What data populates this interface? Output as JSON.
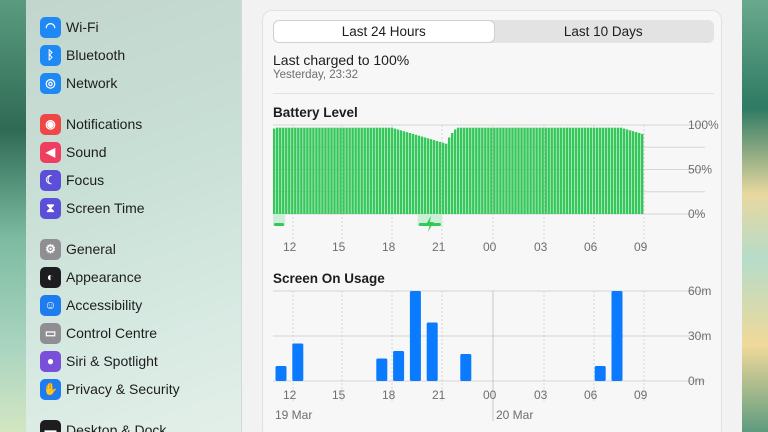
{
  "sidebar": {
    "items": [
      {
        "label": "Wi-Fi",
        "icon": "wifi-icon",
        "color": "#1e88f5",
        "glyph": "◠"
      },
      {
        "label": "Bluetooth",
        "icon": "bluetooth-icon",
        "color": "#1e88f5",
        "glyph": "ᛒ"
      },
      {
        "label": "Network",
        "icon": "globe-icon",
        "color": "#1e88f5",
        "glyph": "◎"
      },
      {
        "label": "Notifications",
        "icon": "bell-icon",
        "color": "#ef4747",
        "glyph": "◉"
      },
      {
        "label": "Sound",
        "icon": "speaker-icon",
        "color": "#ef3e5f",
        "glyph": "◀"
      },
      {
        "label": "Focus",
        "icon": "moon-icon",
        "color": "#5b4fd9",
        "glyph": "☾"
      },
      {
        "label": "Screen Time",
        "icon": "hourglass-icon",
        "color": "#5b4fd9",
        "glyph": "⧗"
      },
      {
        "label": "General",
        "icon": "gear-icon",
        "color": "#8e8e93",
        "glyph": "⚙"
      },
      {
        "label": "Appearance",
        "icon": "appearance-icon",
        "color": "#1d1d1f",
        "glyph": "◐"
      },
      {
        "label": "Accessibility",
        "icon": "accessibility-icon",
        "color": "#1e7cf0",
        "glyph": "☺"
      },
      {
        "label": "Control Centre",
        "icon": "toggles-icon",
        "color": "#8e8e93",
        "glyph": "▭"
      },
      {
        "label": "Siri & Spotlight",
        "icon": "siri-icon",
        "color": "#7a4fd9",
        "glyph": "●"
      },
      {
        "label": "Privacy & Security",
        "icon": "hand-icon",
        "color": "#1e7cf0",
        "glyph": "✋"
      },
      {
        "label": "Desktop & Dock",
        "icon": "dock-icon",
        "color": "#1d1d1f",
        "glyph": "▬"
      }
    ]
  },
  "tabs": [
    {
      "label": "Last 24 Hours",
      "active": true
    },
    {
      "label": "Last 10 Days",
      "active": false
    }
  ],
  "charge": {
    "label": "Last charged to 100%",
    "time": "Yesterday, 23:32"
  },
  "battery_title": "Battery Level",
  "usage_title": "Screen On Usage",
  "colors": {
    "battery": "#34c759",
    "usage": "#0a7aff",
    "grid": "#d6d6d6"
  },
  "chart_data": [
    {
      "type": "bar",
      "title": "Battery Level",
      "x_tick_labels": [
        "12",
        "15",
        "18",
        "21",
        "00",
        "03",
        "06",
        "09"
      ],
      "y_tick_labels": [
        "100%",
        "50%",
        "0%"
      ],
      "ylim": [
        0,
        100
      ],
      "charging_segments": [
        {
          "start": 0,
          "end": 4
        },
        {
          "start": 48,
          "end": 56,
          "bolt": true
        }
      ],
      "values": [
        96,
        97,
        97,
        97,
        97,
        97,
        97,
        97,
        97,
        97,
        97,
        97,
        97,
        97,
        97,
        97,
        97,
        97,
        97,
        97,
        97,
        97,
        97,
        97,
        97,
        97,
        97,
        97,
        97,
        97,
        97,
        97,
        97,
        97,
        97,
        97,
        97,
        97,
        97,
        97,
        96,
        95,
        94,
        93,
        92,
        91,
        90,
        89,
        88,
        87,
        86,
        85,
        84,
        83,
        82,
        81,
        80,
        79,
        86,
        91,
        95,
        97,
        97,
        97,
        97,
        97,
        97,
        97,
        97,
        97,
        97,
        97,
        97,
        97,
        97,
        97,
        97,
        97,
        97,
        97,
        97,
        97,
        97,
        97,
        97,
        97,
        97,
        97,
        97,
        97,
        97,
        97,
        97,
        97,
        97,
        97,
        97,
        97,
        97,
        97,
        97,
        97,
        97,
        97,
        97,
        97,
        97,
        97,
        97,
        97,
        97,
        97,
        97,
        97,
        97,
        97,
        96,
        95,
        94,
        93,
        92,
        91,
        90
      ]
    },
    {
      "type": "bar",
      "title": "Screen On Usage",
      "x_tick_labels": [
        "12",
        "15",
        "18",
        "21",
        "00",
        "03",
        "06",
        "09"
      ],
      "date_labels": [
        "19 Mar",
        "20 Mar"
      ],
      "y_tick_labels": [
        "60m",
        "30m",
        "0m"
      ],
      "ylim": [
        0,
        60
      ],
      "hours_from_start": [
        0,
        1,
        2,
        3,
        4,
        5,
        6,
        7,
        8,
        9,
        10,
        11,
        12,
        13,
        14,
        15,
        16,
        17,
        18,
        19,
        20,
        21
      ],
      "values": [
        10,
        25,
        0,
        0,
        0,
        0,
        15,
        20,
        60,
        39,
        0,
        18,
        0,
        0,
        0,
        0,
        0,
        0,
        0,
        10,
        60,
        0
      ]
    }
  ]
}
